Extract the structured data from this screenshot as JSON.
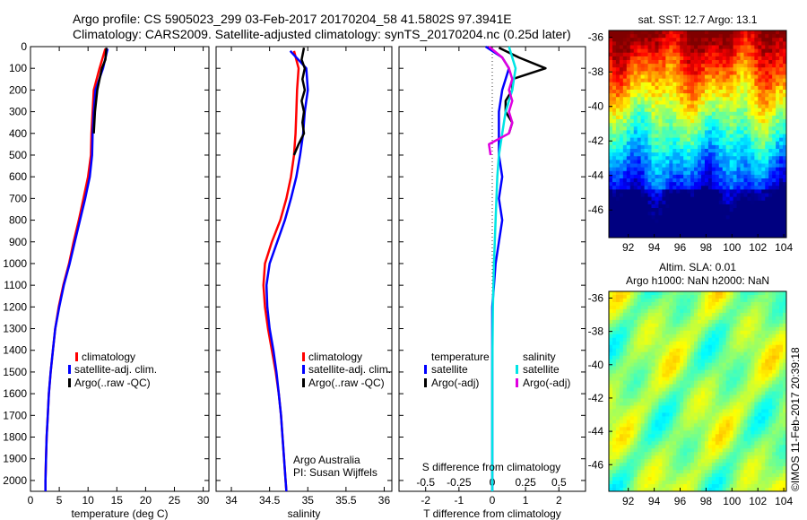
{
  "header": {
    "line1": "Argo profile: CS 5905023_299 03-Feb-2017 20170204_58 41.5802S 97.3941E",
    "line2": "Climatology: CARS2009. Satellite-adjusted climatology: synTS_20170204.nc (0.25d later)"
  },
  "watermark": "©IMOS 11-Feb-2017 20:39:18",
  "panels": {
    "temperature": {
      "xlabel": "temperature (deg C)",
      "legend": [
        "climatology",
        "satellite-adj. clim.",
        "Argo(..raw -QC)"
      ]
    },
    "salinity": {
      "xlabel": "salinity",
      "legend": [
        "climatology",
        "satellite-adj. clim.",
        "Argo(..raw -QC)"
      ],
      "credit1": "Argo Australia",
      "credit2": "PI: Susan Wijffels"
    },
    "difference": {
      "xlabel": "T difference from climatology",
      "toplabel": "S difference from climatology",
      "legend_head_t": "temperature",
      "legend_head_s": "salinity",
      "legend_t": [
        "satellite",
        "Argo(-adj)"
      ],
      "legend_s": [
        "satellite",
        "Argo(-adj)"
      ]
    },
    "sst_map": {
      "title": "sat. SST: 12.7 Argo: 13.1"
    },
    "sla_map": {
      "title1": "Altim. SLA: 0.01",
      "title2": "Argo h1000: NaN h2000: NaN"
    }
  },
  "colors": {
    "climatology": "#ff0000",
    "satellite": "#0000ff",
    "argo": "#000000",
    "sat_salinity": "#00e5e5",
    "argo_salinity": "#e000e0"
  },
  "chart_data": [
    {
      "type": "line",
      "xlabel": "temperature (deg C)",
      "xlim": [
        0,
        31
      ],
      "ylim": [
        2050,
        0
      ],
      "xticks": [
        0,
        5,
        10,
        15,
        20,
        25,
        30
      ],
      "yticks": [
        0,
        100,
        200,
        300,
        400,
        500,
        600,
        700,
        800,
        900,
        1000,
        1100,
        1200,
        1300,
        1400,
        1500,
        1600,
        1700,
        1800,
        1900,
        2000
      ],
      "series": [
        {
          "name": "climatology",
          "color": "#ff0000",
          "points": [
            [
              13.0,
              10
            ],
            [
              12.0,
              100
            ],
            [
              11.0,
              200
            ],
            [
              10.8,
              300
            ],
            [
              10.6,
              400
            ],
            [
              10.5,
              500
            ],
            [
              10.0,
              600
            ],
            [
              9.2,
              700
            ],
            [
              8.4,
              800
            ],
            [
              7.5,
              900
            ],
            [
              6.7,
              1000
            ],
            [
              5.7,
              1100
            ],
            [
              4.9,
              1200
            ],
            [
              4.3,
              1300
            ],
            [
              3.9,
              1400
            ],
            [
              3.5,
              1500
            ],
            [
              3.2,
              1600
            ],
            [
              3.0,
              1700
            ],
            [
              2.8,
              1800
            ],
            [
              2.7,
              1900
            ],
            [
              2.6,
              2000
            ],
            [
              2.6,
              2050
            ]
          ]
        },
        {
          "name": "satellite-adj. clim.",
          "color": "#0000ff",
          "points": [
            [
              13.4,
              10
            ],
            [
              12.6,
              100
            ],
            [
              11.3,
              200
            ],
            [
              11.0,
              300
            ],
            [
              10.8,
              400
            ],
            [
              10.7,
              500
            ],
            [
              10.3,
              600
            ],
            [
              9.5,
              700
            ],
            [
              8.6,
              800
            ],
            [
              7.7,
              900
            ],
            [
              6.8,
              1000
            ],
            [
              5.8,
              1100
            ],
            [
              5.0,
              1200
            ],
            [
              4.3,
              1300
            ],
            [
              3.9,
              1400
            ],
            [
              3.5,
              1500
            ],
            [
              3.2,
              1600
            ],
            [
              3.0,
              1700
            ],
            [
              2.8,
              1800
            ],
            [
              2.7,
              1900
            ],
            [
              2.6,
              2000
            ],
            [
              2.6,
              2050
            ]
          ]
        },
        {
          "name": "Argo(..raw -QC)",
          "color": "#000000",
          "points": [
            [
              13.2,
              5
            ],
            [
              13.0,
              60
            ],
            [
              12.4,
              100
            ],
            [
              11.6,
              200
            ],
            [
              11.2,
              300
            ],
            [
              11.0,
              400
            ]
          ]
        }
      ]
    },
    {
      "type": "line",
      "xlabel": "salinity",
      "xlim": [
        33.8,
        36.1
      ],
      "ylim": [
        2050,
        0
      ],
      "xticks": [
        34,
        34.5,
        35,
        35.5,
        36
      ],
      "series": [
        {
          "name": "climatology",
          "color": "#ff0000",
          "points": [
            [
              34.82,
              20
            ],
            [
              34.88,
              100
            ],
            [
              34.86,
              200
            ],
            [
              34.85,
              300
            ],
            [
              34.84,
              400
            ],
            [
              34.82,
              500
            ],
            [
              34.78,
              600
            ],
            [
              34.72,
              700
            ],
            [
              34.64,
              800
            ],
            [
              34.53,
              900
            ],
            [
              34.44,
              1000
            ],
            [
              34.42,
              1100
            ],
            [
              34.44,
              1200
            ],
            [
              34.48,
              1300
            ],
            [
              34.53,
              1400
            ],
            [
              34.58,
              1500
            ],
            [
              34.62,
              1600
            ],
            [
              34.65,
              1700
            ],
            [
              34.67,
              1800
            ],
            [
              34.69,
              1900
            ],
            [
              34.71,
              2000
            ],
            [
              34.72,
              2050
            ]
          ]
        },
        {
          "name": "satellite-adj. clim.",
          "color": "#0000ff",
          "points": [
            [
              34.77,
              20
            ],
            [
              34.98,
              100
            ],
            [
              35.0,
              200
            ],
            [
              34.96,
              300
            ],
            [
              34.94,
              400
            ],
            [
              34.9,
              500
            ],
            [
              34.85,
              600
            ],
            [
              34.78,
              700
            ],
            [
              34.7,
              800
            ],
            [
              34.6,
              900
            ],
            [
              34.5,
              1000
            ],
            [
              34.46,
              1100
            ],
            [
              34.47,
              1200
            ],
            [
              34.5,
              1300
            ],
            [
              34.55,
              1400
            ],
            [
              34.59,
              1500
            ],
            [
              34.62,
              1600
            ],
            [
              34.65,
              1700
            ],
            [
              34.67,
              1800
            ],
            [
              34.69,
              1900
            ],
            [
              34.71,
              2000
            ],
            [
              34.72,
              2050
            ]
          ]
        },
        {
          "name": "Argo(..raw -QC)",
          "color": "#000000",
          "points": [
            [
              34.95,
              5
            ],
            [
              34.92,
              60
            ],
            [
              34.96,
              100
            ],
            [
              34.93,
              150
            ],
            [
              34.96,
              200
            ],
            [
              34.92,
              250
            ],
            [
              34.95,
              300
            ],
            [
              34.93,
              350
            ],
            [
              34.95,
              400
            ],
            [
              34.88,
              450
            ],
            [
              34.82,
              500
            ]
          ]
        }
      ]
    },
    {
      "type": "line",
      "xlabel": "T difference from climatology",
      "xlim": [
        -2.8,
        2.8
      ],
      "ylim": [
        2050,
        0
      ],
      "xticks": [
        -2,
        -1,
        0,
        1,
        2
      ],
      "secondary_xlabel": "S difference from climatology",
      "secondary_xticks": [
        -0.5,
        -0.25,
        0,
        0.25,
        0.5
      ],
      "series": [
        {
          "name": "temperature satellite",
          "color": "#0000ff",
          "points": [
            [
              -0.2,
              0
            ],
            [
              0.3,
              50
            ],
            [
              0.5,
              100
            ],
            [
              0.3,
              200
            ],
            [
              0.2,
              300
            ],
            [
              0.2,
              400
            ],
            [
              0.2,
              500
            ],
            [
              0.3,
              600
            ],
            [
              0.2,
              700
            ],
            [
              0.3,
              800
            ],
            [
              0.2,
              900
            ],
            [
              0.1,
              1000
            ],
            [
              0.05,
              1100
            ],
            [
              0.0,
              1200
            ],
            [
              0.0,
              1400
            ],
            [
              0.0,
              1600
            ],
            [
              0.0,
              1800
            ],
            [
              0.0,
              2050
            ]
          ]
        },
        {
          "name": "temperature Argo(-adj)",
          "color": "#000000",
          "points": [
            [
              0.2,
              5
            ],
            [
              0.8,
              50
            ],
            [
              1.6,
              100
            ],
            [
              0.6,
              150
            ],
            [
              0.6,
              200
            ],
            [
              0.4,
              250
            ],
            [
              0.4,
              300
            ],
            [
              0.6,
              350
            ],
            [
              0.5,
              400
            ]
          ]
        },
        {
          "name": "salinity satellite",
          "color": "#00e5e5",
          "points": [
            [
              0.5,
              0
            ],
            [
              0.7,
              100
            ],
            [
              0.6,
              200
            ],
            [
              0.4,
              300
            ],
            [
              0.3,
              400
            ],
            [
              0.2,
              500
            ],
            [
              0.15,
              600
            ],
            [
              0.1,
              800
            ],
            [
              0.05,
              1000
            ],
            [
              0.02,
              1200
            ],
            [
              0.0,
              1500
            ],
            [
              0.0,
              2050
            ]
          ]
        },
        {
          "name": "salinity Argo(-adj)",
          "color": "#e000e0",
          "points": [
            [
              -0.1,
              0
            ],
            [
              0.3,
              50
            ],
            [
              0.5,
              100
            ],
            [
              0.6,
              150
            ],
            [
              0.5,
              200
            ],
            [
              0.6,
              250
            ],
            [
              0.5,
              300
            ],
            [
              0.6,
              350
            ],
            [
              0.5,
              400
            ],
            [
              -0.1,
              450
            ],
            [
              -0.05,
              500
            ]
          ]
        }
      ]
    },
    {
      "type": "heatmap",
      "title": "sat. SST: 12.7 Argo: 13.1",
      "xlim": [
        90.5,
        104.2
      ],
      "ylim": [
        -47.6,
        -35.6
      ],
      "xticks": [
        92,
        94,
        96,
        98,
        100,
        102,
        104
      ],
      "yticks": [
        -36,
        -38,
        -40,
        -42,
        -44,
        -46
      ]
    },
    {
      "type": "heatmap",
      "title": "Altim. SLA: 0.01",
      "xlim": [
        90.5,
        104.2
      ],
      "ylim": [
        -47.6,
        -35.6
      ],
      "xticks": [
        92,
        94,
        96,
        98,
        100,
        102,
        104
      ],
      "yticks": [
        -36,
        -38,
        -40,
        -42,
        -44,
        -46
      ]
    }
  ]
}
